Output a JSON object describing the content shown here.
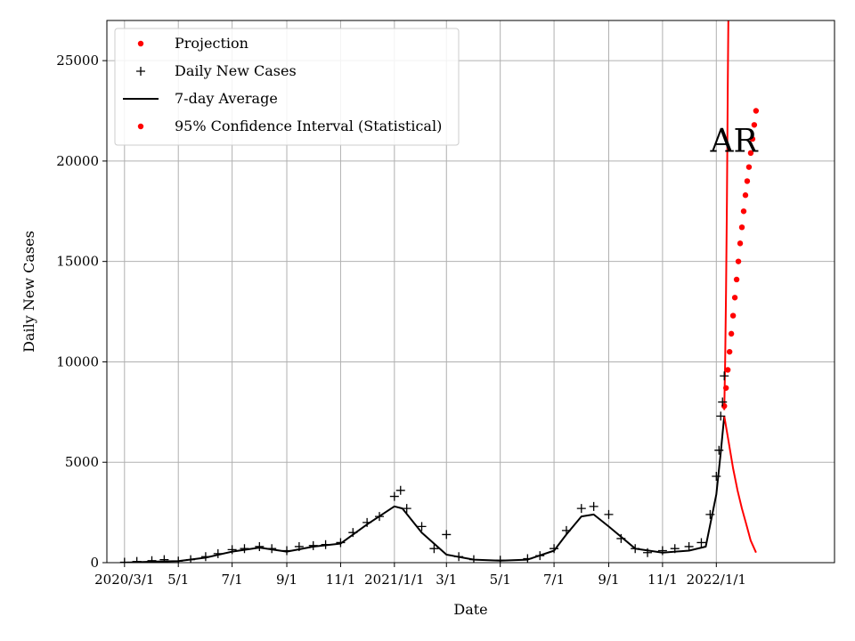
{
  "chart_data": {
    "type": "line",
    "xlabel": "Date",
    "ylabel": "Daily New Cases",
    "xlim": [
      "2020-02-10",
      "2022-05-15"
    ],
    "ylim": [
      0,
      27000
    ],
    "grid": true,
    "legend_position": "top-left",
    "annotation": {
      "text": "AR",
      "x": "2022-01-21",
      "y": 21000
    },
    "x_ticks": [
      {
        "date": "2020-03-01",
        "label": "2020/3/1"
      },
      {
        "date": "2020-05-01",
        "label": "5/1"
      },
      {
        "date": "2020-07-01",
        "label": "7/1"
      },
      {
        "date": "2020-09-01",
        "label": "9/1"
      },
      {
        "date": "2020-11-01",
        "label": "11/1"
      },
      {
        "date": "2021-01-01",
        "label": "2021/1/1"
      },
      {
        "date": "2021-03-01",
        "label": "3/1"
      },
      {
        "date": "2021-05-01",
        "label": "5/1"
      },
      {
        "date": "2021-07-01",
        "label": "7/1"
      },
      {
        "date": "2021-09-01",
        "label": "9/1"
      },
      {
        "date": "2021-11-01",
        "label": "11/1"
      },
      {
        "date": "2022-01-01",
        "label": "2022/1/1"
      }
    ],
    "y_ticks": [
      {
        "value": 0,
        "label": "0"
      },
      {
        "value": 5000,
        "label": "5000"
      },
      {
        "value": 10000,
        "label": "10000"
      },
      {
        "value": 15000,
        "label": "15000"
      },
      {
        "value": 20000,
        "label": "20000"
      },
      {
        "value": 25000,
        "label": "25000"
      }
    ],
    "series": [
      {
        "name": "Projection",
        "style": "points",
        "color": "#ff0000",
        "points": [
          [
            "2022-01-10",
            7800
          ],
          [
            "2022-01-12",
            8700
          ],
          [
            "2022-01-14",
            9600
          ],
          [
            "2022-01-16",
            10500
          ],
          [
            "2022-01-18",
            11400
          ],
          [
            "2022-01-20",
            12300
          ],
          [
            "2022-01-22",
            13200
          ],
          [
            "2022-01-24",
            14100
          ],
          [
            "2022-01-26",
            15000
          ],
          [
            "2022-01-28",
            15900
          ],
          [
            "2022-01-30",
            16700
          ],
          [
            "2022-02-01",
            17500
          ],
          [
            "2022-02-03",
            18300
          ],
          [
            "2022-02-05",
            19000
          ],
          [
            "2022-02-07",
            19700
          ],
          [
            "2022-02-09",
            20400
          ],
          [
            "2022-02-11",
            21100
          ],
          [
            "2022-02-13",
            21800
          ],
          [
            "2022-02-15",
            22500
          ]
        ]
      },
      {
        "name": "Daily New Cases",
        "style": "plus",
        "color": "#000000",
        "points": [
          [
            "2020-03-01",
            20
          ],
          [
            "2020-03-15",
            60
          ],
          [
            "2020-04-01",
            100
          ],
          [
            "2020-04-15",
            150
          ],
          [
            "2020-05-01",
            80
          ],
          [
            "2020-05-15",
            150
          ],
          [
            "2020-06-01",
            300
          ],
          [
            "2020-06-15",
            450
          ],
          [
            "2020-07-01",
            650
          ],
          [
            "2020-07-15",
            700
          ],
          [
            "2020-08-01",
            800
          ],
          [
            "2020-08-15",
            700
          ],
          [
            "2020-09-01",
            600
          ],
          [
            "2020-09-15",
            800
          ],
          [
            "2020-10-01",
            850
          ],
          [
            "2020-10-15",
            900
          ],
          [
            "2020-11-01",
            1000
          ],
          [
            "2020-11-15",
            1500
          ],
          [
            "2020-12-01",
            2000
          ],
          [
            "2020-12-15",
            2300
          ],
          [
            "2021-01-01",
            3300
          ],
          [
            "2021-01-08",
            3600
          ],
          [
            "2021-01-15",
            2700
          ],
          [
            "2021-02-01",
            1800
          ],
          [
            "2021-02-15",
            700
          ],
          [
            "2021-03-01",
            1400
          ],
          [
            "2021-03-15",
            300
          ],
          [
            "2021-04-01",
            150
          ],
          [
            "2021-05-01",
            120
          ],
          [
            "2021-06-01",
            200
          ],
          [
            "2021-06-15",
            350
          ],
          [
            "2021-07-01",
            700
          ],
          [
            "2021-07-15",
            1600
          ],
          [
            "2021-08-01",
            2700
          ],
          [
            "2021-08-15",
            2800
          ],
          [
            "2021-09-01",
            2400
          ],
          [
            "2021-09-15",
            1200
          ],
          [
            "2021-10-01",
            700
          ],
          [
            "2021-10-15",
            500
          ],
          [
            "2021-11-01",
            600
          ],
          [
            "2021-11-15",
            700
          ],
          [
            "2021-12-01",
            800
          ],
          [
            "2021-12-15",
            1000
          ],
          [
            "2021-12-25",
            2400
          ],
          [
            "2022-01-01",
            4300
          ],
          [
            "2022-01-04",
            5600
          ],
          [
            "2022-01-06",
            7300
          ],
          [
            "2022-01-08",
            8000
          ],
          [
            "2022-01-10",
            9300
          ]
        ]
      },
      {
        "name": "7-day Average",
        "style": "line",
        "color": "#000000",
        "points": [
          [
            "2020-03-01",
            0
          ],
          [
            "2020-04-01",
            50
          ],
          [
            "2020-05-01",
            80
          ],
          [
            "2020-06-01",
            250
          ],
          [
            "2020-07-01",
            550
          ],
          [
            "2020-08-01",
            750
          ],
          [
            "2020-09-01",
            550
          ],
          [
            "2020-10-01",
            800
          ],
          [
            "2020-11-01",
            950
          ],
          [
            "2020-12-01",
            1900
          ],
          [
            "2021-01-01",
            2800
          ],
          [
            "2021-01-10",
            2700
          ],
          [
            "2021-02-01",
            1500
          ],
          [
            "2021-03-01",
            400
          ],
          [
            "2021-04-01",
            150
          ],
          [
            "2021-05-01",
            100
          ],
          [
            "2021-06-01",
            150
          ],
          [
            "2021-07-01",
            600
          ],
          [
            "2021-07-15",
            1400
          ],
          [
            "2021-08-01",
            2300
          ],
          [
            "2021-08-15",
            2400
          ],
          [
            "2021-09-01",
            1800
          ],
          [
            "2021-10-01",
            700
          ],
          [
            "2021-11-01",
            500
          ],
          [
            "2021-12-01",
            600
          ],
          [
            "2021-12-20",
            800
          ],
          [
            "2022-01-01",
            3400
          ],
          [
            "2022-01-06",
            5500
          ],
          [
            "2022-01-10",
            7300
          ]
        ]
      },
      {
        "name": "95% Confidence Interval (Statistical)",
        "style": "line",
        "color": "#ff0000",
        "points": [
          [
            "2022-01-10",
            7600
          ],
          [
            "2022-01-11",
            10000
          ],
          [
            "2022-01-12",
            13500
          ],
          [
            "2022-01-13",
            18000
          ],
          [
            "2022-01-14",
            24000
          ],
          [
            "2022-01-15",
            29000
          ]
        ]
      },
      {
        "name": "",
        "style": "line",
        "color": "#ff0000",
        "points": [
          [
            "2022-01-10",
            7300
          ],
          [
            "2022-01-15",
            6000
          ],
          [
            "2022-01-20",
            4700
          ],
          [
            "2022-01-25",
            3600
          ],
          [
            "2022-01-30",
            2700
          ],
          [
            "2022-02-04",
            1900
          ],
          [
            "2022-02-09",
            1100
          ],
          [
            "2022-02-15",
            500
          ]
        ]
      }
    ]
  }
}
